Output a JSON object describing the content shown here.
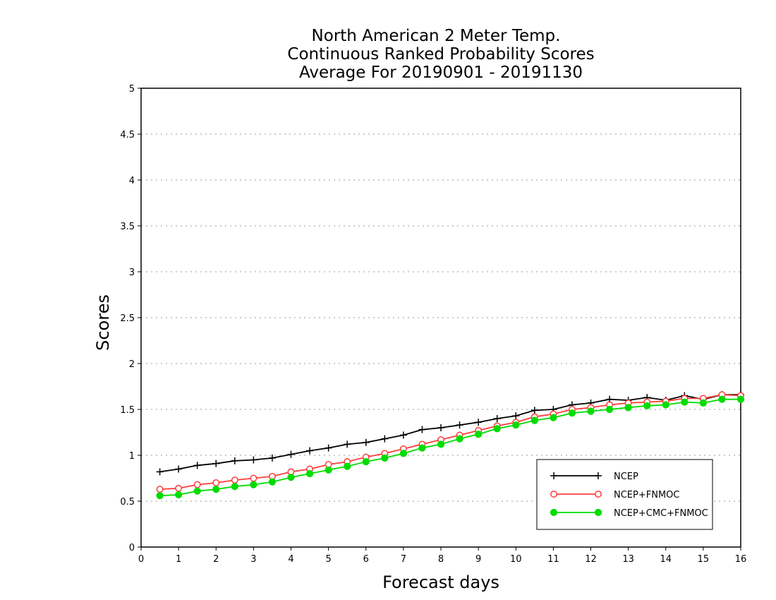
{
  "chart_data": {
    "type": "line",
    "title": [
      "North American 2 Meter Temp.",
      "Continuous Ranked Probability Scores",
      "Average For 20190901 - 20191130"
    ],
    "xlabel": "Forecast days",
    "ylabel": "Scores",
    "xlim": [
      0,
      16
    ],
    "ylim": [
      0,
      5
    ],
    "xticks": [
      "0",
      "1",
      "2",
      "3",
      "4",
      "5",
      "6",
      "7",
      "8",
      "9",
      "10",
      "11",
      "12",
      "13",
      "14",
      "15",
      "16"
    ],
    "yticks": [
      "0",
      "0.5",
      "1",
      "1.5",
      "2",
      "2.5",
      "3",
      "3.5",
      "4",
      "4.5",
      "5"
    ],
    "ytick_values": [
      0,
      0.5,
      1,
      1.5,
      2,
      2.5,
      3,
      3.5,
      4,
      4.5,
      5
    ],
    "grid": "horizontal-dotted",
    "legend_position": "bottom-right",
    "x": [
      0.5,
      1,
      1.5,
      2,
      2.5,
      3,
      3.5,
      4,
      4.5,
      5,
      5.5,
      6,
      6.5,
      7,
      7.5,
      8,
      8.5,
      9,
      9.5,
      10,
      10.5,
      11,
      11.5,
      12,
      12.5,
      13,
      13.5,
      14,
      14.5,
      15,
      15.5,
      16
    ],
    "series": [
      {
        "name": "NCEP",
        "color": "#000000",
        "marker": "plus",
        "values": [
          0.82,
          0.85,
          0.89,
          0.91,
          0.94,
          0.95,
          0.97,
          1.01,
          1.05,
          1.08,
          1.12,
          1.14,
          1.18,
          1.22,
          1.28,
          1.3,
          1.33,
          1.36,
          1.4,
          1.43,
          1.49,
          1.5,
          1.55,
          1.57,
          1.61,
          1.6,
          1.63,
          1.6,
          1.65,
          1.61,
          1.66,
          1.66
        ]
      },
      {
        "name": "NCEP+FNMOC",
        "color": "#ff3c3c",
        "marker": "open-circle",
        "values": [
          0.63,
          0.64,
          0.68,
          0.7,
          0.73,
          0.75,
          0.77,
          0.82,
          0.85,
          0.9,
          0.93,
          0.98,
          1.02,
          1.07,
          1.12,
          1.17,
          1.22,
          1.27,
          1.32,
          1.36,
          1.42,
          1.45,
          1.5,
          1.52,
          1.55,
          1.57,
          1.58,
          1.59,
          1.62,
          1.62,
          1.66,
          1.65
        ]
      },
      {
        "name": "NCEP+CMC+FNMOC",
        "color": "#00dc00",
        "marker": "filled-circle",
        "values": [
          0.56,
          0.57,
          0.61,
          0.63,
          0.66,
          0.68,
          0.71,
          0.76,
          0.8,
          0.84,
          0.88,
          0.93,
          0.97,
          1.02,
          1.08,
          1.12,
          1.18,
          1.23,
          1.29,
          1.33,
          1.38,
          1.41,
          1.46,
          1.48,
          1.5,
          1.52,
          1.54,
          1.55,
          1.58,
          1.57,
          1.61,
          1.61
        ]
      }
    ]
  }
}
